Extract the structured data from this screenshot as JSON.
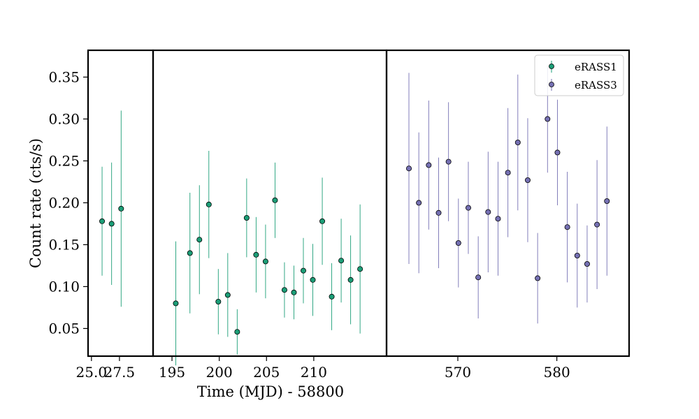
{
  "chart_data": {
    "type": "scatter",
    "xlabel": "Time (MJD) - 58800",
    "ylabel": "Count rate (cts/s)",
    "ylim": [
      0.017,
      0.382
    ],
    "yticks": [
      0.05,
      0.1,
      0.15,
      0.2,
      0.25,
      0.3,
      0.35
    ],
    "ytick_labels": [
      "0.05",
      "0.10",
      "0.15",
      "0.20",
      "0.25",
      "0.30",
      "0.35"
    ],
    "colors": {
      "eRASS1": "#1b9e77",
      "eRASS3": "#7570b3"
    },
    "legend": {
      "position": "top-right",
      "entries": [
        "eRASS1",
        "eRASS3"
      ]
    },
    "panels": [
      {
        "xlim": [
          24.7,
          30.5
        ],
        "xticks": [
          25.0,
          27.5
        ],
        "xtick_labels": [
          "25.0",
          "27.5"
        ],
        "series": [
          {
            "name": "eRASS1",
            "points": [
              {
                "x": 25.95,
                "y": 0.178,
                "err": 0.065
              },
              {
                "x": 26.8,
                "y": 0.175,
                "err": 0.073
              },
              {
                "x": 27.65,
                "y": 0.193,
                "err": 0.117
              }
            ]
          }
        ]
      },
      {
        "xlim": [
          193.0,
          217.7
        ],
        "xticks": [
          195,
          200,
          205,
          210
        ],
        "xtick_labels": [
          "195",
          "200",
          "205",
          "210"
        ],
        "series": [
          {
            "name": "eRASS1",
            "points": [
              {
                "x": 195.4,
                "y": 0.08,
                "err": 0.074
              },
              {
                "x": 196.9,
                "y": 0.14,
                "err": 0.072
              },
              {
                "x": 197.9,
                "y": 0.156,
                "err": 0.065
              },
              {
                "x": 198.9,
                "y": 0.198,
                "err": 0.064
              },
              {
                "x": 199.9,
                "y": 0.082,
                "err": 0.039
              },
              {
                "x": 200.9,
                "y": 0.09,
                "err": 0.05
              },
              {
                "x": 201.9,
                "y": 0.046,
                "err": 0.027
              },
              {
                "x": 202.9,
                "y": 0.182,
                "err": 0.047
              },
              {
                "x": 203.9,
                "y": 0.138,
                "err": 0.045
              },
              {
                "x": 204.9,
                "y": 0.13,
                "err": 0.044
              },
              {
                "x": 205.9,
                "y": 0.203,
                "err": 0.045
              },
              {
                "x": 206.9,
                "y": 0.096,
                "err": 0.033
              },
              {
                "x": 207.9,
                "y": 0.093,
                "err": 0.032
              },
              {
                "x": 208.9,
                "y": 0.119,
                "err": 0.039
              },
              {
                "x": 209.9,
                "y": 0.108,
                "err": 0.043
              },
              {
                "x": 210.9,
                "y": 0.178,
                "err": 0.052
              },
              {
                "x": 211.9,
                "y": 0.088,
                "err": 0.04
              },
              {
                "x": 212.9,
                "y": 0.131,
                "err": 0.05
              },
              {
                "x": 213.9,
                "y": 0.108,
                "err": 0.053
              },
              {
                "x": 214.9,
                "y": 0.121,
                "err": 0.077
              }
            ]
          }
        ]
      },
      {
        "xlim": [
          562.8,
          587.3
        ],
        "xticks": [
          570,
          580
        ],
        "xtick_labels": [
          "570",
          "580"
        ],
        "series": [
          {
            "name": "eRASS3",
            "points": [
              {
                "x": 565.06,
                "y": 0.241,
                "err": 0.114
              },
              {
                "x": 566.06,
                "y": 0.2,
                "err": 0.084
              },
              {
                "x": 567.06,
                "y": 0.245,
                "err": 0.077
              },
              {
                "x": 568.06,
                "y": 0.188,
                "err": 0.066
              },
              {
                "x": 569.06,
                "y": 0.249,
                "err": 0.071
              },
              {
                "x": 570.06,
                "y": 0.152,
                "err": 0.053
              },
              {
                "x": 571.06,
                "y": 0.194,
                "err": 0.055
              },
              {
                "x": 572.06,
                "y": 0.111,
                "err": 0.049
              },
              {
                "x": 573.06,
                "y": 0.189,
                "err": 0.072
              },
              {
                "x": 574.06,
                "y": 0.181,
                "err": 0.068
              },
              {
                "x": 575.06,
                "y": 0.236,
                "err": 0.077
              },
              {
                "x": 576.06,
                "y": 0.272,
                "err": 0.081
              },
              {
                "x": 577.06,
                "y": 0.227,
                "err": 0.074
              },
              {
                "x": 578.06,
                "y": 0.11,
                "err": 0.054
              },
              {
                "x": 579.06,
                "y": 0.3,
                "err": 0.064
              },
              {
                "x": 580.06,
                "y": 0.26,
                "err": 0.063
              },
              {
                "x": 581.06,
                "y": 0.171,
                "err": 0.066
              },
              {
                "x": 582.06,
                "y": 0.137,
                "err": 0.062
              },
              {
                "x": 583.06,
                "y": 0.127,
                "err": 0.046
              },
              {
                "x": 584.06,
                "y": 0.174,
                "err": 0.077
              },
              {
                "x": 585.06,
                "y": 0.202,
                "err": 0.089
              }
            ]
          }
        ]
      }
    ]
  }
}
